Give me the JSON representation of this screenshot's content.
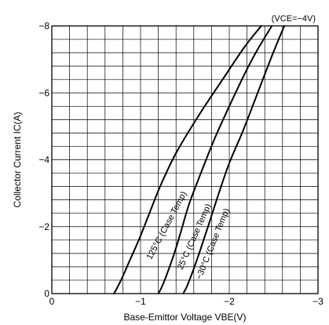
{
  "chart_data": {
    "type": "line",
    "title": "",
    "condition_label": "(VCE=−4V)",
    "xlabel": "Base-Emittor Voltage VBE(V)",
    "ylabel": "Collector Current IC(A)",
    "xlim": [
      0,
      -3
    ],
    "ylim": [
      0,
      -8
    ],
    "x_ticks": [
      0,
      -1,
      -2,
      -3
    ],
    "x_tick_labels": [
      "0",
      "−1",
      "−2",
      "−3"
    ],
    "y_ticks": [
      0,
      -2,
      -4,
      -6,
      -8
    ],
    "y_tick_labels": [
      "0",
      "−2",
      "−4",
      "−6",
      "−8"
    ],
    "grid": true,
    "grid_x_step": -0.2,
    "grid_y_step": -0.4,
    "series": [
      {
        "name": "125°C (Case Temp)",
        "x": [
          -0.7,
          -0.78,
          -0.88,
          -0.98,
          -1.1,
          -1.22,
          -1.4,
          -1.65,
          -1.95,
          -2.18,
          -2.36
        ],
        "y": [
          0,
          -0.4,
          -1.0,
          -1.6,
          -2.4,
          -3.2,
          -4.2,
          -5.3,
          -6.5,
          -7.4,
          -8.0
        ]
      },
      {
        "name": "25°C (Case Temp)",
        "x": [
          -1.2,
          -1.24,
          -1.3,
          -1.38,
          -1.46,
          -1.55,
          -1.68,
          -1.83,
          -2.0,
          -2.18,
          -2.32,
          -2.48
        ],
        "y": [
          0,
          -0.2,
          -0.6,
          -1.2,
          -1.9,
          -2.7,
          -3.6,
          -4.6,
          -5.6,
          -6.6,
          -7.3,
          -8.0
        ]
      },
      {
        "name": "−30°C (Case Temp)",
        "x": [
          -1.48,
          -1.52,
          -1.58,
          -1.66,
          -1.76,
          -1.87,
          -2.0,
          -2.16,
          -2.32,
          -2.48,
          -2.62
        ],
        "y": [
          0,
          -0.2,
          -0.6,
          -1.2,
          -2.0,
          -2.9,
          -3.9,
          -4.9,
          -6.0,
          -7.1,
          -8.0
        ]
      }
    ]
  }
}
